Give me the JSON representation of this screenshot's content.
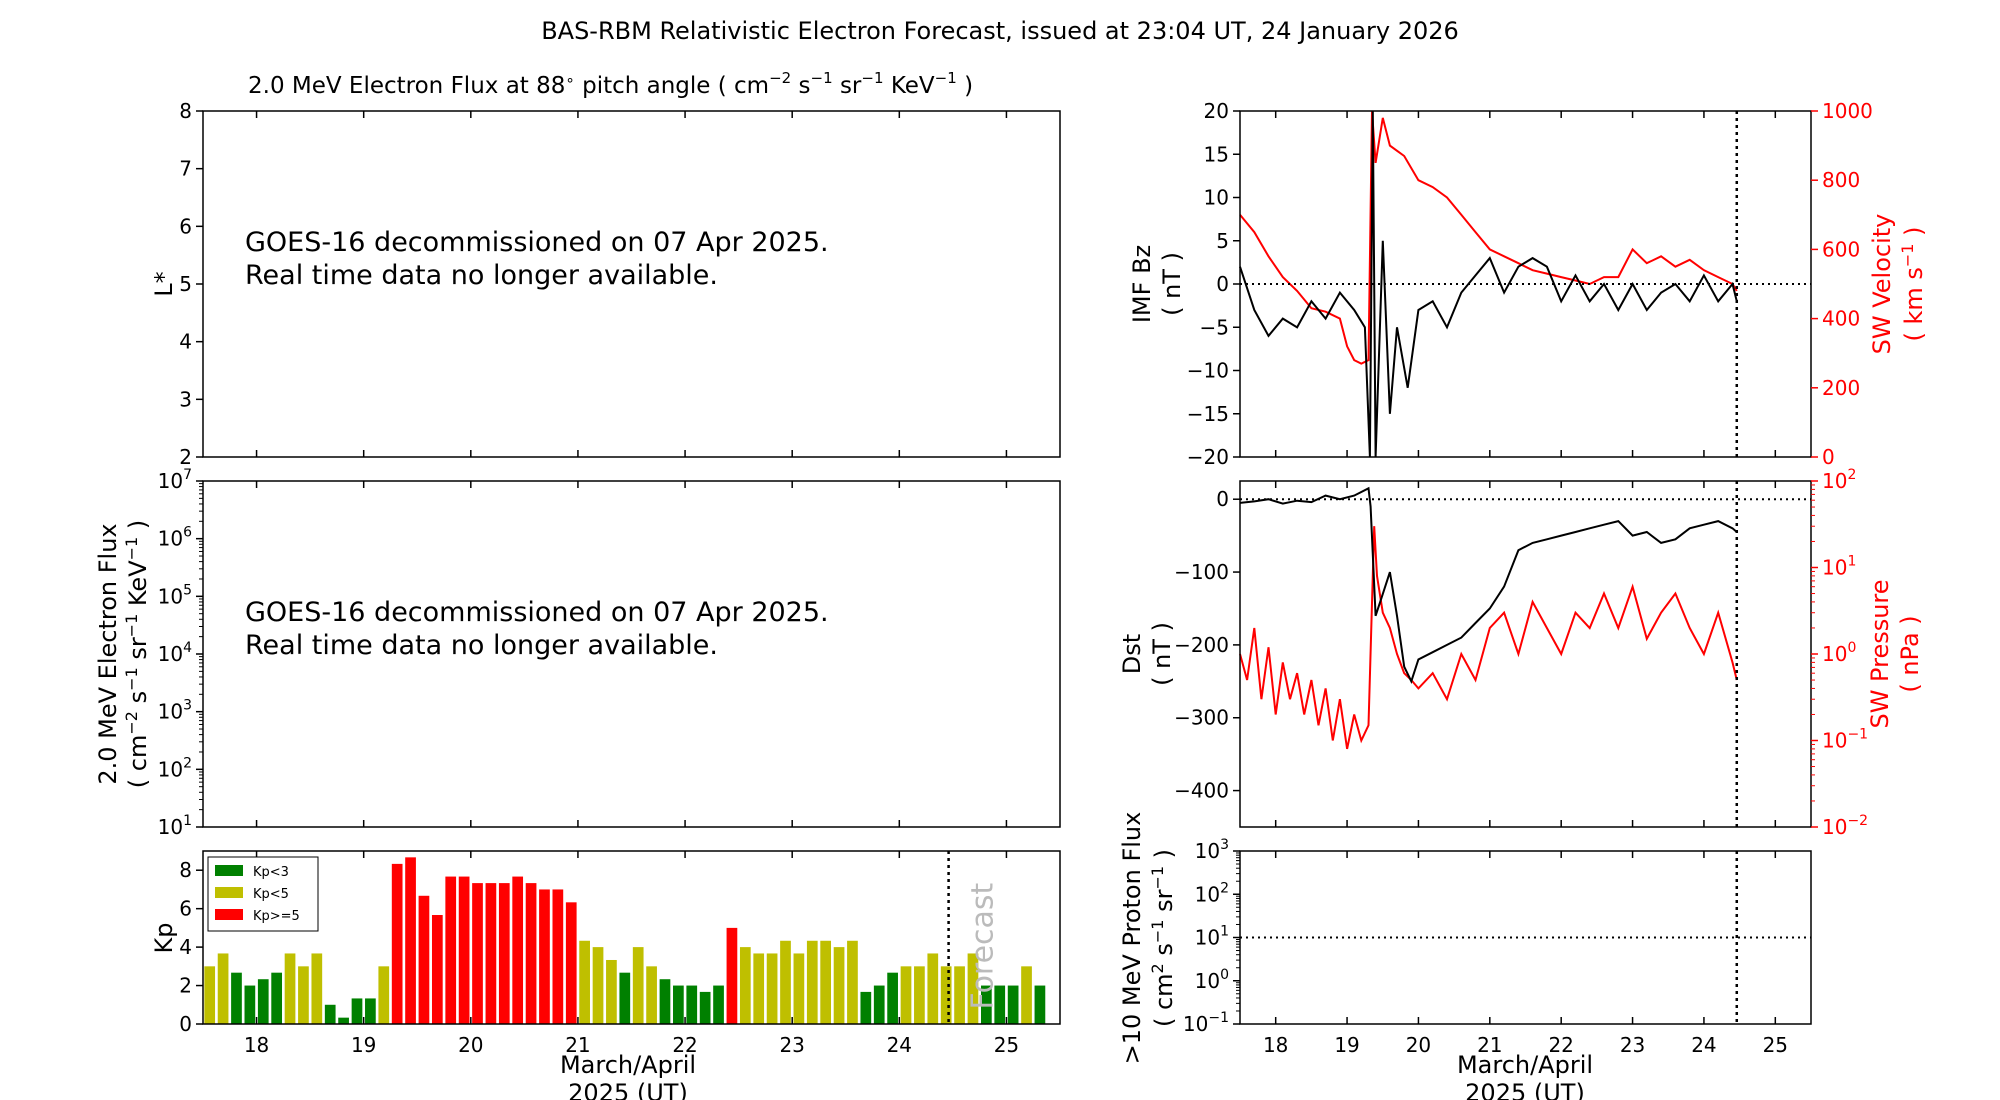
{
  "title": "BAS-RBM Relativistic Electron Forecast, issued at 23:04 UT, 24 January 2026",
  "colors": {
    "black": "#000000",
    "red": "#ff0000",
    "kp_green": "#008000",
    "kp_yellow": "#bfbf00",
    "kp_red": "#ff0000"
  },
  "chart_data": [
    {
      "id": "lstar",
      "type": "line",
      "title": "2.0 MeV Electron Flux at 88$^\\circ$ pitch angle ( cm$^{-2}$ s$^{-1}$ sr$^{-1}$ KeV$^{-1}$ )",
      "title_parts": {
        "pre": "2.0 MeV Electron Flux at 88",
        "deg": "∘",
        "mid": " pitch angle ( cm",
        "sup1": "−2",
        "s": " s",
        "sup2": "−1",
        "sr": " sr",
        "sup3": "−1",
        "kev": " KeV",
        "sup4": "−1",
        "post": " )"
      },
      "ylabel": "L*",
      "ylim": [
        2,
        8
      ],
      "yticks": [
        "2",
        "3",
        "4",
        "5",
        "6",
        "7",
        "8"
      ],
      "message": [
        "GOES-16 decommissioned on 07 Apr 2025.",
        "Real time data no longer available."
      ]
    },
    {
      "id": "eflux",
      "type": "line",
      "ylabel": [
        "2.0 MeV Electron Flux",
        "( cm$^{-2}$ s$^{-1}$ sr$^{-1}$ KeV$^{-1}$ )"
      ],
      "yscale": "log",
      "ylim": [
        10,
        10000000
      ],
      "yticks": [
        {
          "b": "10",
          "e": "1"
        },
        {
          "b": "10",
          "e": "2"
        },
        {
          "b": "10",
          "e": "3"
        },
        {
          "b": "10",
          "e": "4"
        },
        {
          "b": "10",
          "e": "5"
        },
        {
          "b": "10",
          "e": "6"
        },
        {
          "b": "10",
          "e": "7"
        }
      ],
      "message": [
        "GOES-16 decommissioned on 07 Apr 2025.",
        "Real time data no longer available."
      ]
    },
    {
      "id": "kp",
      "type": "bar",
      "ylabel": "Kp",
      "ylim": [
        0,
        9
      ],
      "yticks": [
        "0",
        "2",
        "4",
        "6",
        "8"
      ],
      "xlim": [
        17.5,
        25.5
      ],
      "xticks": [
        "18",
        "19",
        "20",
        "21",
        "22",
        "23",
        "24",
        "25"
      ],
      "xlabel": [
        "March/April",
        "2025 (UT)"
      ],
      "forecast_line_x": 24.46,
      "forecast_label": "Forecast",
      "bar_width": 0.1,
      "legend": {
        "placement": "top-left",
        "entries": [
          "Kp<3",
          "Kp<5",
          "Kp>=5"
        ]
      },
      "bars": [
        [
          17.5625,
          3.0
        ],
        [
          17.6875,
          3.67
        ],
        [
          17.8125,
          2.67
        ],
        [
          17.9375,
          2.0
        ],
        [
          18.0625,
          2.33
        ],
        [
          18.1875,
          2.67
        ],
        [
          18.3125,
          3.67
        ],
        [
          18.4375,
          3.0
        ],
        [
          18.5625,
          3.67
        ],
        [
          18.6875,
          1.0
        ],
        [
          18.8125,
          0.33
        ],
        [
          18.9375,
          1.33
        ],
        [
          19.0625,
          1.33
        ],
        [
          19.1875,
          3.0
        ],
        [
          19.3125,
          8.33
        ],
        [
          19.4375,
          8.67
        ],
        [
          19.5625,
          6.67
        ],
        [
          19.6875,
          5.67
        ],
        [
          19.8125,
          7.67
        ],
        [
          19.9375,
          7.67
        ],
        [
          20.0625,
          7.33
        ],
        [
          20.1875,
          7.33
        ],
        [
          20.3125,
          7.33
        ],
        [
          20.4375,
          7.67
        ],
        [
          20.5625,
          7.33
        ],
        [
          20.6875,
          7.0
        ],
        [
          20.8125,
          7.0
        ],
        [
          20.9375,
          6.33
        ],
        [
          21.0625,
          4.33
        ],
        [
          21.1875,
          4.0
        ],
        [
          21.3125,
          3.33
        ],
        [
          21.4375,
          2.67
        ],
        [
          21.5625,
          4.0
        ],
        [
          21.6875,
          3.0
        ],
        [
          21.8125,
          2.33
        ],
        [
          21.9375,
          2.0
        ],
        [
          22.0625,
          2.0
        ],
        [
          22.1875,
          1.67
        ],
        [
          22.3125,
          2.0
        ],
        [
          22.4375,
          5.0
        ],
        [
          22.5625,
          4.0
        ],
        [
          22.6875,
          3.67
        ],
        [
          22.8125,
          3.67
        ],
        [
          22.9375,
          4.33
        ],
        [
          23.0625,
          3.67
        ],
        [
          23.1875,
          4.33
        ],
        [
          23.3125,
          4.33
        ],
        [
          23.4375,
          4.0
        ],
        [
          23.5625,
          4.33
        ],
        [
          23.6875,
          1.67
        ],
        [
          23.8125,
          2.0
        ],
        [
          23.9375,
          2.67
        ],
        [
          24.0625,
          3.0
        ],
        [
          24.1875,
          3.0
        ],
        [
          24.3125,
          3.67
        ],
        [
          24.4375,
          3.0
        ],
        [
          24.5625,
          3.0
        ],
        [
          24.6875,
          3.67
        ],
        [
          24.8125,
          2.0
        ],
        [
          24.9375,
          2.0
        ],
        [
          25.0625,
          2.0
        ],
        [
          25.1875,
          3.0
        ],
        [
          25.3125,
          2.0
        ]
      ]
    },
    {
      "id": "imf",
      "type": "line",
      "ylabel": [
        "IMF Bz",
        "( nT )"
      ],
      "ylim": [
        -20,
        20
      ],
      "yticks": [
        "−20",
        "−15",
        "−10",
        "−5",
        "0",
        "5",
        "10",
        "15",
        "20"
      ],
      "y2label": [
        "SW Velocity",
        "( km s$^{-1}$ )"
      ],
      "y2label_parts": {
        "pre": "( km s",
        "sup": "−1",
        "post": " )"
      },
      "y2lim": [
        0,
        1000
      ],
      "y2ticks": [
        "0",
        "200",
        "400",
        "600",
        "800",
        "1000"
      ],
      "xlim": [
        17.5,
        25.5
      ],
      "now_line_x": 24.46,
      "zero_line": 0,
      "series": [
        {
          "color": "#000000",
          "x": [
            17.5,
            17.7,
            17.9,
            18.1,
            18.3,
            18.5,
            18.7,
            18.9,
            19.1,
            19.25,
            19.32,
            19.36,
            19.4,
            19.5,
            19.6,
            19.7,
            19.85,
            20.0,
            20.2,
            20.4,
            20.6,
            20.8,
            21.0,
            21.2,
            21.4,
            21.6,
            21.8,
            22.0,
            22.2,
            22.4,
            22.6,
            22.8,
            23.0,
            23.2,
            23.4,
            23.6,
            23.8,
            24.0,
            24.2,
            24.4,
            24.46
          ],
          "y": [
            2,
            -3,
            -6,
            -4,
            -5,
            -2,
            -4,
            -1,
            -3,
            -5,
            -20,
            20,
            -20,
            5,
            -15,
            -5,
            -12,
            -3,
            -2,
            -5,
            -1,
            1,
            3,
            -1,
            2,
            3,
            2,
            -2,
            1,
            -2,
            0,
            -3,
            0,
            -3,
            -1,
            0,
            -2,
            1,
            -2,
            0,
            -2
          ]
        },
        {
          "color": "#ff0000",
          "x": [
            17.5,
            17.7,
            17.9,
            18.1,
            18.3,
            18.5,
            18.7,
            18.9,
            19.0,
            19.1,
            19.2,
            19.3,
            19.35,
            19.4,
            19.5,
            19.6,
            19.8,
            20.0,
            20.2,
            20.4,
            20.6,
            20.8,
            21.0,
            21.2,
            21.4,
            21.6,
            21.8,
            22.0,
            22.2,
            22.4,
            22.6,
            22.8,
            23.0,
            23.2,
            23.4,
            23.6,
            23.8,
            24.0,
            24.2,
            24.4,
            24.46
          ],
          "y": [
            700,
            650,
            580,
            520,
            480,
            430,
            420,
            400,
            320,
            280,
            270,
            280,
            1000,
            850,
            980,
            900,
            870,
            800,
            780,
            750,
            700,
            650,
            600,
            580,
            560,
            540,
            530,
            520,
            510,
            500,
            520,
            520,
            600,
            560,
            580,
            550,
            570,
            540,
            520,
            500,
            480
          ]
        }
      ]
    },
    {
      "id": "dst",
      "type": "line",
      "ylabel": [
        "Dst",
        "( nT )"
      ],
      "ylim": [
        -450,
        25
      ],
      "yticks": [
        "−400",
        "−300",
        "−200",
        "−100",
        "0"
      ],
      "y2label": [
        "SW Pressure",
        "( nPa )"
      ],
      "y2scale": "log",
      "y2lim": [
        0.01,
        100
      ],
      "y2ticks": [
        {
          "b": "10",
          "e": "−2"
        },
        {
          "b": "10",
          "e": "−1"
        },
        {
          "b": "10",
          "e": "0"
        },
        {
          "b": "10",
          "e": "1"
        },
        {
          "b": "10",
          "e": "2"
        }
      ],
      "xlim": [
        17.5,
        25.5
      ],
      "now_line_x": 24.46,
      "zero_line": 0,
      "series": [
        {
          "color": "#000000",
          "x": [
            17.5,
            17.7,
            17.9,
            18.1,
            18.3,
            18.5,
            18.7,
            18.9,
            19.1,
            19.3,
            19.33,
            19.4,
            19.5,
            19.6,
            19.7,
            19.8,
            19.9,
            20.0,
            20.2,
            20.4,
            20.6,
            20.8,
            21.0,
            21.2,
            21.4,
            21.6,
            21.8,
            22.0,
            22.2,
            22.4,
            22.6,
            22.8,
            23.0,
            23.2,
            23.4,
            23.6,
            23.8,
            24.0,
            24.2,
            24.4,
            24.46
          ],
          "y": [
            -5,
            -3,
            0,
            -6,
            -2,
            -4,
            5,
            0,
            5,
            15,
            -10,
            -160,
            -130,
            -100,
            -160,
            -230,
            -250,
            -220,
            -210,
            -200,
            -190,
            -170,
            -150,
            -120,
            -70,
            -60,
            -55,
            -50,
            -45,
            -40,
            -35,
            -30,
            -50,
            -45,
            -60,
            -55,
            -40,
            -35,
            -30,
            -40,
            -45
          ]
        },
        {
          "color": "#ff0000",
          "x": [
            17.5,
            17.6,
            17.7,
            17.8,
            17.9,
            18.0,
            18.1,
            18.2,
            18.3,
            18.4,
            18.5,
            18.6,
            18.7,
            18.8,
            18.9,
            19.0,
            19.1,
            19.2,
            19.3,
            19.38,
            19.42,
            19.5,
            19.6,
            19.7,
            19.8,
            19.9,
            20.0,
            20.2,
            20.4,
            20.6,
            20.8,
            21.0,
            21.2,
            21.4,
            21.6,
            21.8,
            22.0,
            22.2,
            22.4,
            22.6,
            22.8,
            23.0,
            23.2,
            23.4,
            23.6,
            23.8,
            24.0,
            24.2,
            24.4,
            24.46
          ],
          "y": [
            1.0,
            0.5,
            2.0,
            0.3,
            1.2,
            0.2,
            0.8,
            0.3,
            0.6,
            0.2,
            0.5,
            0.15,
            0.4,
            0.1,
            0.3,
            0.08,
            0.2,
            0.1,
            0.15,
            30,
            8,
            3,
            2,
            1.0,
            0.6,
            0.5,
            0.4,
            0.6,
            0.3,
            1.0,
            0.5,
            2,
            3,
            1,
            4,
            2,
            1,
            3,
            2,
            5,
            2,
            6,
            1.5,
            3,
            5,
            2,
            1,
            3,
            0.8,
            0.5
          ]
        }
      ]
    },
    {
      "id": "proton",
      "type": "line",
      "ylabel": [
        ">10 MeV Proton Flux",
        "( cm$^{2}$ s$^{-1}$ sr$^{-1}$ )"
      ],
      "yscale": "log",
      "ylim": [
        0.1,
        1000
      ],
      "yticks": [
        {
          "b": "10",
          "e": "−1"
        },
        {
          "b": "10",
          "e": "0"
        },
        {
          "b": "10",
          "e": "1"
        },
        {
          "b": "10",
          "e": "2"
        },
        {
          "b": "10",
          "e": "3"
        }
      ],
      "xlim": [
        17.5,
        25.5
      ],
      "xticks": [
        "18",
        "19",
        "20",
        "21",
        "22",
        "23",
        "24",
        "25"
      ],
      "xlabel": [
        "March/April",
        "2025 (UT)"
      ],
      "now_line_x": 24.46,
      "threshold_line": 10
    }
  ]
}
